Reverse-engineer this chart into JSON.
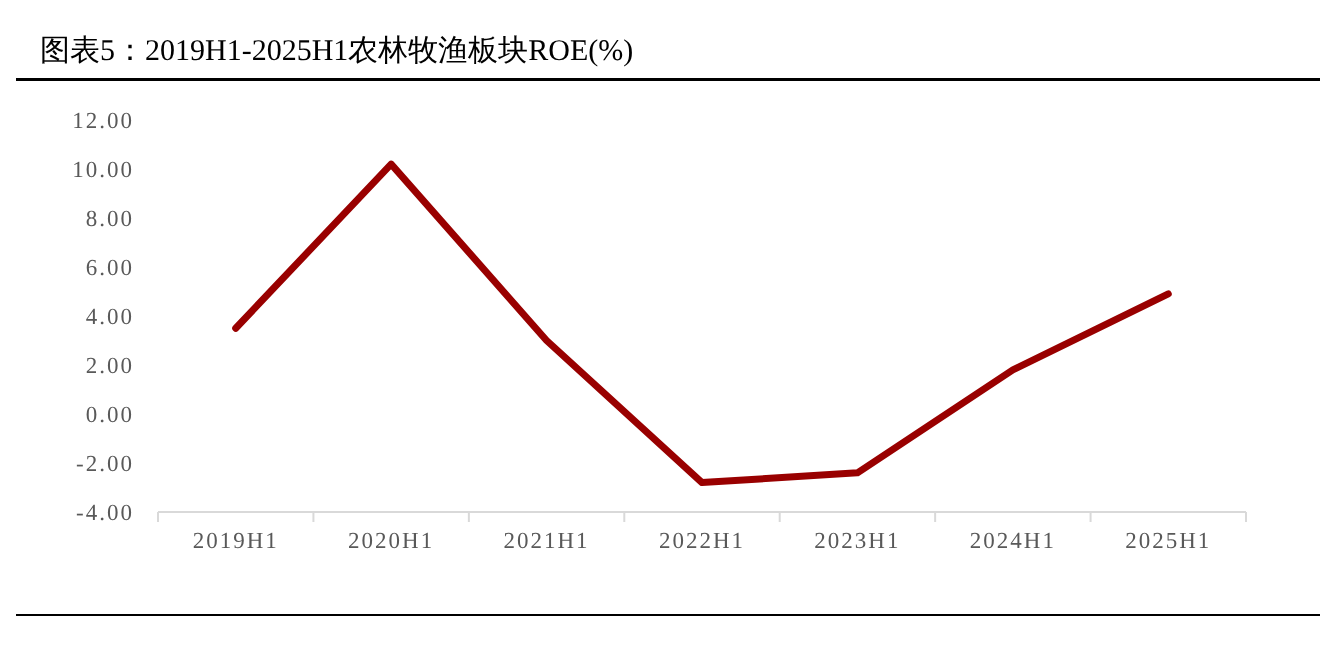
{
  "chart_data": {
    "type": "line",
    "title": "图表5：2019H1-2025H1农林牧渔板块ROE(%)",
    "categories": [
      "2019H1",
      "2020H1",
      "2021H1",
      "2022H1",
      "2023H1",
      "2024H1",
      "2025H1"
    ],
    "series": [
      {
        "color": "#990000",
        "values": [
          3.5,
          10.2,
          3.0,
          -2.8,
          -2.4,
          1.8,
          4.9
        ]
      }
    ],
    "ylim": [
      -4,
      12
    ],
    "yticks": [
      {
        "value": -4,
        "label": "-4.00"
      },
      {
        "value": -2,
        "label": "-2.00"
      },
      {
        "value": 0,
        "label": "0.00"
      },
      {
        "value": 2,
        "label": "2.00"
      },
      {
        "value": 4,
        "label": "4.00"
      },
      {
        "value": 6,
        "label": "6.00"
      },
      {
        "value": 8,
        "label": "8.00"
      },
      {
        "value": 10,
        "label": "10.00"
      },
      {
        "value": 12,
        "label": "12.00"
      }
    ],
    "grid": false,
    "marker": "none",
    "line_style": "solid"
  }
}
